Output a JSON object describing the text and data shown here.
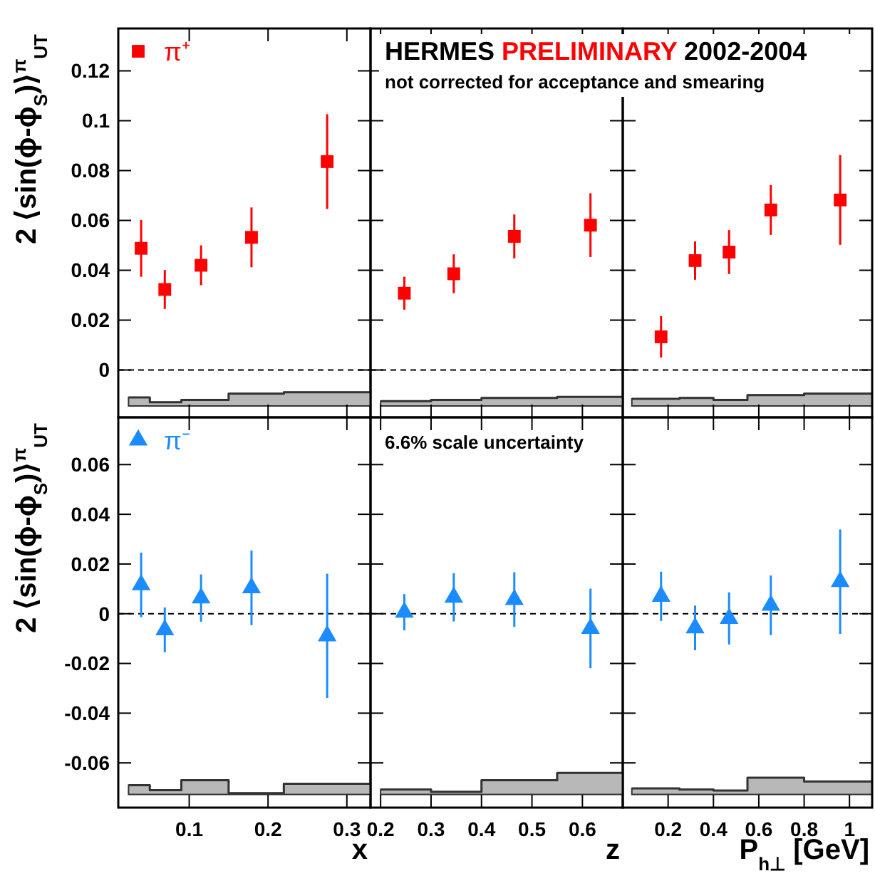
{
  "chart_data": [
    {
      "type": "scatter",
      "ylabel": "2 ⟨sin(ϕ-ϕ$_{S}$)⟩$^{π}$$_{UT}$",
      "xlim": [
        0.01,
        0.33
      ],
      "xticks": [
        0.1,
        0.2,
        0.3
      ],
      "ylim": [
        -0.019,
        0.137
      ],
      "yticks": [
        0,
        0.02,
        0.04,
        0.06,
        0.08,
        0.1,
        0.12
      ],
      "tick_labels": "y",
      "legend": "top left",
      "x": [
        0.039,
        0.069,
        0.115,
        0.179,
        0.275
      ],
      "ref_lines": [
        {
          "axis": "y",
          "value": 0,
          "color": "#000000",
          "line_style": "dashed"
        }
      ],
      "series": [
        {
          "name": "π⁺",
          "color": "#ff0000",
          "marker": "square",
          "values": [
            0.0488,
            0.0323,
            0.042,
            0.0532,
            0.0836
          ],
          "errors": [
            0.0114,
            0.0078,
            0.008,
            0.012,
            0.019
          ]
        },
        {
          "type": "line",
          "color": "#333333",
          "x": [
            0.023,
            0.05,
            0.05,
            0.09,
            0.09,
            0.15,
            0.15,
            0.22,
            0.22,
            0.33
          ],
          "values": [
            -0.011,
            -0.011,
            -0.0129,
            -0.0129,
            -0.012,
            -0.012,
            -0.0095,
            -0.0095,
            -0.0089,
            -0.0089
          ],
          "upper": [
            -0.011,
            -0.011,
            -0.0129,
            -0.0129,
            -0.012,
            -0.012,
            -0.0095,
            -0.0095,
            -0.0089,
            -0.0089
          ],
          "lower": [
            -0.0144,
            -0.0144,
            -0.0144,
            -0.0144,
            -0.0144,
            -0.0144,
            -0.0144,
            -0.0144,
            -0.0144,
            -0.0144
          ]
        }
      ]
    },
    {
      "type": "scatter",
      "title": "HERMES PRELIMINARY 2002-2004",
      "annotations": [
        "not corrected for acceptance and smearing"
      ],
      "xlim": [
        0.18,
        0.68
      ],
      "xticks": [
        0.2,
        0.3,
        0.4,
        0.5,
        0.6
      ],
      "ylim": [
        -0.019,
        0.137
      ],
      "yticks": [
        0,
        0.02,
        0.04,
        0.06,
        0.08,
        0.1,
        0.12
      ],
      "tick_labels": false,
      "x": [
        0.247,
        0.345,
        0.465,
        0.616
      ],
      "ref_lines": [
        {
          "axis": "y",
          "value": 0,
          "color": "#000000",
          "line_style": "dashed"
        }
      ],
      "series": [
        {
          "color": "#ff0000",
          "marker": "square",
          "values": [
            0.0308,
            0.0386,
            0.0536,
            0.0581
          ],
          "errors": [
            0.0066,
            0.0078,
            0.0088,
            0.0128
          ]
        },
        {
          "type": "line",
          "color": "#333333",
          "x": [
            0.2,
            0.3,
            0.3,
            0.4,
            0.4,
            0.55,
            0.55,
            0.68
          ],
          "values": [
            -0.0125,
            -0.0125,
            -0.012,
            -0.012,
            -0.0112,
            -0.0112,
            -0.0108,
            -0.0108
          ],
          "upper": [
            -0.0125,
            -0.0125,
            -0.012,
            -0.012,
            -0.0112,
            -0.0112,
            -0.0108,
            -0.0108
          ],
          "lower": [
            -0.0144,
            -0.0144,
            -0.0144,
            -0.0144,
            -0.0144,
            -0.0144,
            -0.0144,
            -0.0144
          ]
        }
      ]
    },
    {
      "type": "scatter",
      "xlim": [
        0,
        1.1
      ],
      "xticks": [
        0.2,
        0.4,
        0.6,
        0.8,
        1
      ],
      "ylim": [
        -0.019,
        0.137
      ],
      "yticks": [
        0,
        0.02,
        0.04,
        0.06,
        0.08,
        0.1,
        0.12
      ],
      "tick_labels": false,
      "x": [
        0.169,
        0.319,
        0.469,
        0.653,
        0.959
      ],
      "ref_lines": [
        {
          "axis": "y",
          "value": 0,
          "color": "#000000",
          "line_style": "dashed"
        }
      ],
      "series": [
        {
          "color": "#ff0000",
          "marker": "square",
          "values": [
            0.0133,
            0.0439,
            0.0473,
            0.0642,
            0.0682
          ],
          "errors": [
            0.0083,
            0.0077,
            0.0088,
            0.01,
            0.018
          ]
        },
        {
          "type": "line",
          "color": "#333333",
          "x": [
            0.04,
            0.25,
            0.25,
            0.4,
            0.4,
            0.55,
            0.55,
            0.8,
            0.8,
            1.1
          ],
          "values": [
            -0.0116,
            -0.0116,
            -0.0112,
            -0.0112,
            -0.012,
            -0.012,
            -0.0101,
            -0.0101,
            -0.0095,
            -0.0095
          ],
          "upper": [
            -0.0116,
            -0.0116,
            -0.0112,
            -0.0112,
            -0.012,
            -0.012,
            -0.0101,
            -0.0101,
            -0.0095,
            -0.0095
          ],
          "lower": [
            -0.0144,
            -0.0144,
            -0.0144,
            -0.0144,
            -0.0144,
            -0.0144,
            -0.0144,
            -0.0144,
            -0.0144,
            -0.0144
          ]
        }
      ]
    },
    {
      "type": "scatter",
      "ylabel": "2 ⟨sin(ϕ-ϕ$_{S}$)⟩$^{π}$$_{UT}$",
      "xlabel": "x",
      "xlim": [
        0.01,
        0.33
      ],
      "xticks": [
        0.1,
        0.2,
        0.3
      ],
      "ylim": [
        -0.078,
        0.079
      ],
      "yticks": [
        -0.06,
        -0.04,
        -0.02,
        0,
        0.02,
        0.04,
        0.06
      ],
      "legend": "top left",
      "x": [
        0.039,
        0.069,
        0.115,
        0.179,
        0.275
      ],
      "ref_lines": [
        {
          "axis": "y",
          "value": 0,
          "color": "#000000",
          "line_style": "dashed"
        }
      ],
      "series": [
        {
          "name": "π⁻",
          "color": "#1a8cff",
          "marker": "triangle",
          "values": [
            0.0116,
            -0.0065,
            0.0063,
            0.0104,
            -0.0089
          ],
          "errors": [
            0.013,
            0.009,
            0.0095,
            0.015,
            0.025
          ]
        },
        {
          "type": "line",
          "color": "#333333",
          "x": [
            0.023,
            0.05,
            0.05,
            0.09,
            0.09,
            0.15,
            0.15,
            0.22,
            0.22,
            0.33
          ],
          "values": [
            -0.069,
            -0.069,
            -0.071,
            -0.071,
            -0.067,
            -0.067,
            -0.0722,
            -0.0722,
            -0.0684,
            -0.0684
          ],
          "upper": [
            -0.069,
            -0.069,
            -0.071,
            -0.071,
            -0.067,
            -0.067,
            -0.0722,
            -0.0722,
            -0.0684,
            -0.0684
          ],
          "lower": [
            -0.0727,
            -0.0727,
            -0.0727,
            -0.0727,
            -0.0727,
            -0.0727,
            -0.0727,
            -0.0727,
            -0.0727,
            -0.0727
          ]
        }
      ]
    },
    {
      "type": "scatter",
      "xlabel": "z",
      "annotations": [
        "6.6% scale uncertainty"
      ],
      "xlim": [
        0.18,
        0.68
      ],
      "xticks": [
        0.2,
        0.3,
        0.4,
        0.5,
        0.6
      ],
      "ylim": [
        -0.078,
        0.079
      ],
      "yticks": [
        -0.06,
        -0.04,
        -0.02,
        0,
        0.02,
        0.04,
        0.06
      ],
      "tick_labels": "x",
      "x": [
        0.247,
        0.345,
        0.465,
        0.616
      ],
      "ref_lines": [
        {
          "axis": "y",
          "value": 0,
          "color": "#000000",
          "line_style": "dashed"
        }
      ],
      "series": [
        {
          "color": "#1a8cff",
          "marker": "triangle",
          "values": [
            0.0006,
            0.0066,
            0.0057,
            -0.0059
          ],
          "errors": [
            0.0073,
            0.0097,
            0.011,
            0.016
          ]
        },
        {
          "type": "line",
          "color": "#333333",
          "x": [
            0.2,
            0.3,
            0.3,
            0.4,
            0.4,
            0.55,
            0.55,
            0.68
          ],
          "values": [
            -0.0707,
            -0.0707,
            -0.0716,
            -0.0716,
            -0.067,
            -0.067,
            -0.064,
            -0.064
          ],
          "upper": [
            -0.0707,
            -0.0707,
            -0.0716,
            -0.0716,
            -0.067,
            -0.067,
            -0.064,
            -0.064
          ],
          "lower": [
            -0.0727,
            -0.0727,
            -0.0727,
            -0.0727,
            -0.0727,
            -0.0727,
            -0.0727,
            -0.0727
          ]
        }
      ]
    },
    {
      "type": "scatter",
      "xlabel": "P$_{h⊥}$ [GeV]",
      "xlim": [
        0,
        1.1
      ],
      "xticks": [
        0.2,
        0.4,
        0.6,
        0.8,
        1
      ],
      "ylim": [
        -0.078,
        0.079
      ],
      "yticks": [
        -0.06,
        -0.04,
        -0.02,
        0,
        0.02,
        0.04,
        0.06
      ],
      "tick_labels": "x",
      "x": [
        0.169,
        0.319,
        0.469,
        0.653,
        0.959
      ],
      "ref_lines": [
        {
          "axis": "y",
          "value": 0,
          "color": "#000000",
          "line_style": "dashed"
        }
      ],
      "series": [
        {
          "color": "#1a8cff",
          "marker": "triangle",
          "values": [
            0.007,
            -0.0057,
            -0.0019,
            0.0034,
            0.0129
          ],
          "errors": [
            0.0099,
            0.009,
            0.0105,
            0.012,
            0.021
          ]
        },
        {
          "type": "line",
          "color": "#333333",
          "x": [
            0.04,
            0.25,
            0.25,
            0.4,
            0.4,
            0.55,
            0.55,
            0.8,
            0.8,
            1.1
          ],
          "values": [
            -0.0703,
            -0.0703,
            -0.0707,
            -0.0707,
            -0.0711,
            -0.0711,
            -0.066,
            -0.066,
            -0.0675,
            -0.0675
          ],
          "upper": [
            -0.0703,
            -0.0703,
            -0.0707,
            -0.0707,
            -0.0711,
            -0.0711,
            -0.066,
            -0.066,
            -0.0675,
            -0.0675
          ],
          "lower": [
            -0.0727,
            -0.0727,
            -0.0727,
            -0.0727,
            -0.0727,
            -0.0727,
            -0.0727,
            -0.0727,
            -0.0727,
            -0.0727
          ]
        }
      ]
    }
  ]
}
